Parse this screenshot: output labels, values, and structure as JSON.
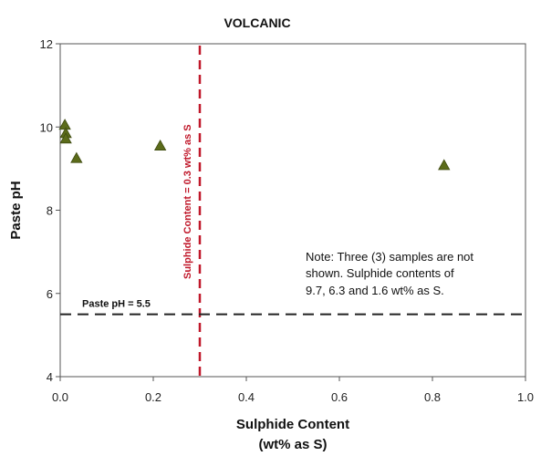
{
  "chart_data": {
    "type": "scatter",
    "title": "VOLCANIC",
    "xlabel_line1": "Sulphide Content",
    "xlabel_line2": "(wt% as S)",
    "ylabel": "Paste pH",
    "xlim": [
      0,
      1.0
    ],
    "ylim": [
      4,
      12
    ],
    "x_ticks": [
      "0.0",
      "0.2",
      "0.4",
      "0.6",
      "0.8",
      "1.0"
    ],
    "y_ticks": [
      "4",
      "6",
      "8",
      "10",
      "12"
    ],
    "grid": false,
    "points": [
      {
        "x": 0.01,
        "y": 10.05
      },
      {
        "x": 0.012,
        "y": 9.85
      },
      {
        "x": 0.012,
        "y": 9.72
      },
      {
        "x": 0.035,
        "y": 9.25
      },
      {
        "x": 0.215,
        "y": 9.55
      },
      {
        "x": 0.825,
        "y": 9.08
      }
    ],
    "marker_color": "#5b6b1a",
    "reference_lines": {
      "horizontal": {
        "y": 5.5,
        "label": "Paste pH = 5.5",
        "color": "#222222"
      },
      "vertical": {
        "x": 0.3,
        "label": "Sulphide Content = 0.3 wt% as S",
        "color": "#c0182a"
      }
    },
    "note_lines": [
      "Note: Three (3) samples are not",
      "shown. Sulphide contents of",
      "9.7, 6.3 and 1.6 wt% as S."
    ]
  }
}
